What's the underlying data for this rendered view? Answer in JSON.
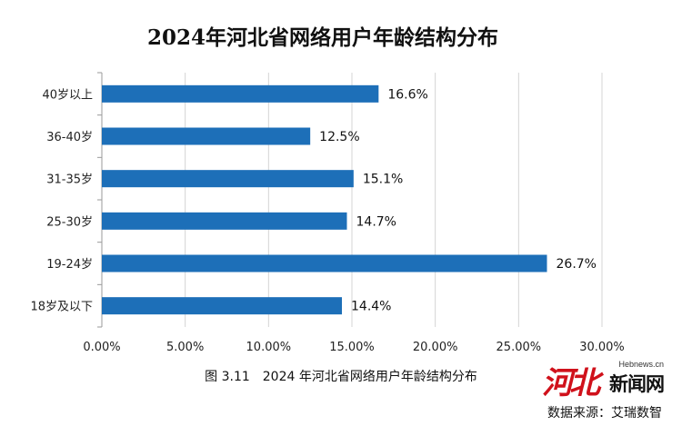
{
  "chart_data": {
    "type": "bar",
    "orientation": "horizontal",
    "title": "2024年河北省网络用户年龄结构分布",
    "categories": [
      "40岁以上",
      "36-40岁",
      "31-35岁",
      "25-30岁",
      "19-24岁",
      "18岁及以下"
    ],
    "values": [
      16.6,
      12.5,
      15.1,
      14.7,
      26.7,
      14.4
    ],
    "data_labels": [
      "16.6%",
      "12.5%",
      "15.1%",
      "14.7%",
      "26.7%",
      "14.4%"
    ],
    "x_ticks": [
      "0.00%",
      "5.00%",
      "10.00%",
      "15.00%",
      "20.00%",
      "25.00%",
      "30.00%"
    ],
    "xlim": [
      0,
      30
    ],
    "grid": true,
    "bar_color": "#1d6fb8",
    "grid_color": "#d4d4d4"
  },
  "caption": "图 3.11　2024 年河北省网络用户年龄结构分布",
  "watermark": {
    "domain": "Hebnews.cn",
    "name": "新闻网",
    "mark": "河北"
  },
  "source": "数据来源：艾瑞数智"
}
